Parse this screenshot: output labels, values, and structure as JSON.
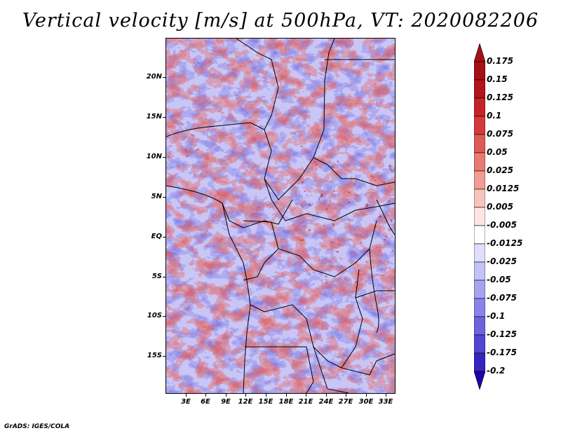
{
  "title": "Vertical velocity [m/s] at 500hPa, VT: 2020082206",
  "credit": "GrADS: IGES/COLA",
  "map": {
    "lat_labels": [
      "20N",
      "15N",
      "10N",
      "5N",
      "EQ",
      "5S",
      "10S",
      "15S"
    ],
    "lat_values": [
      20,
      15,
      10,
      5,
      0,
      -5,
      -10,
      -15
    ],
    "lon_labels": [
      "3E",
      "6E",
      "9E",
      "12E",
      "15E",
      "18E",
      "21E",
      "24E",
      "27E",
      "30E",
      "33E"
    ],
    "lon_values": [
      3,
      6,
      9,
      12,
      15,
      18,
      21,
      24,
      27,
      30,
      33
    ],
    "lat_range": [
      -19.7,
      24.7
    ],
    "lon_range": [
      0.5,
      34.6
    ]
  },
  "colorbar": {
    "labels": [
      "0.175",
      "0.15",
      "0.125",
      "0.1",
      "0.075",
      "0.05",
      "0.025",
      "0.0125",
      "0.005",
      "-0.005",
      "-0.0125",
      "-0.025",
      "-0.05",
      "-0.075",
      "-0.1",
      "-0.125",
      "-0.175",
      "-0.2"
    ],
    "colors": [
      "#a50f15",
      "#b3151c",
      "#c52329",
      "#d53a3a",
      "#e05a55",
      "#e87a72",
      "#f19c94",
      "#f7c4bd",
      "#fde6e2",
      "#ffffff",
      "#e0defd",
      "#c5c2f7",
      "#a7a3f0",
      "#8a84e8",
      "#6c63de",
      "#5046d2",
      "#3526c0",
      "#2000a8"
    ],
    "top_color": "#a50f15",
    "bottom_color": "#2000a8"
  }
}
